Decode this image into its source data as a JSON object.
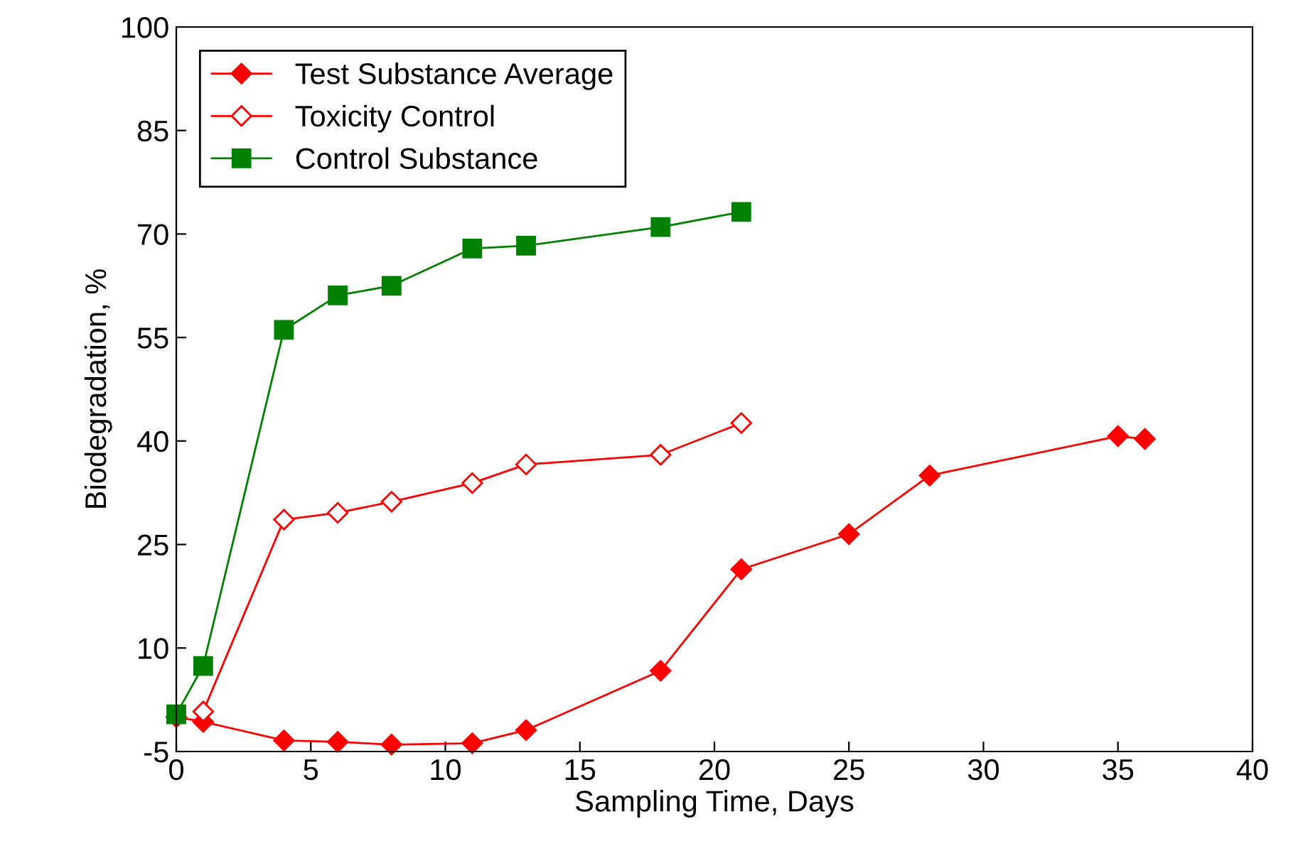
{
  "chart_data": {
    "type": "line",
    "xlabel": "Sampling Time, Days",
    "ylabel": "Biodegradation, %",
    "xlim": [
      0,
      40
    ],
    "xticks": [
      0,
      5,
      10,
      15,
      20,
      25,
      30,
      35,
      40
    ],
    "ylim": [
      -5,
      100
    ],
    "yticks": [
      -5,
      10,
      25,
      40,
      55,
      70,
      85,
      100
    ],
    "grid": false,
    "legend": "top left",
    "series": [
      {
        "name": "Test Substance Average",
        "color": "#ff0000",
        "marker": "diamond",
        "x": [
          0,
          1,
          4,
          6,
          8,
          11,
          13,
          18,
          21,
          25,
          28,
          35,
          36
        ],
        "values": [
          0,
          -0.7,
          -3.4,
          -3.6,
          -4,
          -3.8,
          -1.9,
          6.7,
          21.4,
          26.5,
          35,
          40.7,
          40.3
        ]
      },
      {
        "name": "Toxicity Control",
        "color": "#ff0000",
        "marker": "diamond",
        "x": [
          1,
          4,
          6,
          8,
          11,
          13,
          18,
          21
        ],
        "values": [
          0.8,
          28.6,
          29.6,
          31.2,
          33.9,
          36.6,
          38,
          42.6
        ]
      },
      {
        "name": "Control Substance",
        "color": "#008000",
        "marker": "square",
        "x": [
          0,
          1,
          4,
          6,
          8,
          11,
          13,
          18,
          21
        ],
        "values": [
          0.4,
          7.4,
          56.1,
          61.1,
          62.5,
          67.9,
          68.3,
          71,
          73.2
        ]
      }
    ]
  }
}
